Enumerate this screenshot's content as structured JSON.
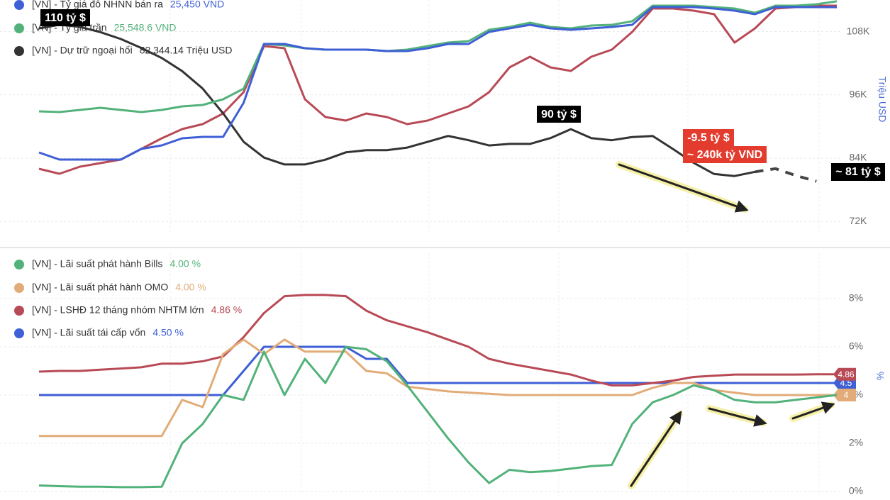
{
  "chart_data": [
    {
      "type": "line",
      "y_label": "Triệu USD",
      "categories": [
        null,
        null,
        null,
        null,
        null,
        null,
        null,
        null,
        null,
        null,
        null,
        null,
        null,
        null,
        null,
        null,
        null,
        null,
        null,
        null,
        null,
        null,
        null,
        null,
        null,
        null,
        null,
        null,
        null,
        null,
        null,
        null,
        null,
        null,
        null,
        null,
        null,
        null,
        null,
        null
      ],
      "ylim": [
        70000,
        114000
      ],
      "yticks": [
        {
          "value": 72000,
          "label": "72K"
        },
        {
          "value": 84000,
          "label": "84K"
        },
        {
          "value": 96000,
          "label": "96K"
        },
        {
          "value": 108000,
          "label": "108K"
        }
      ],
      "y2lim": [
        21700,
        25570
      ],
      "grid": true,
      "annotations": [
        "110 tỷ $",
        "90 tỷ $",
        "-9.5 tỷ $",
        "~ 240k tỷ VND",
        "~ 81 tỷ $"
      ],
      "series": [
        {
          "name": "[VN] - Tỷ giá đô NHNN bán ra",
          "legend_value": "25,450 VND",
          "color": "#3f5fd6",
          "axis": "y2",
          "values": [
            23025,
            22907,
            22907,
            22907,
            22907,
            23085,
            23144,
            23262,
            23286,
            23286,
            23854,
            24836,
            24836,
            24765,
            24742,
            24742,
            24742,
            24718,
            24718,
            24765,
            24836,
            24836,
            25037,
            25097,
            25156,
            25097,
            25073,
            25097,
            25120,
            25156,
            25452,
            25452,
            25452,
            25428,
            25392,
            25333,
            25452,
            25452,
            25452,
            25450
          ]
        },
        {
          "name": "[VN] - Tỷ giá trần",
          "legend_value": "25,548.6 VND",
          "color": "#52b27a",
          "axis": "y2",
          "values": [
            23712,
            23700,
            23736,
            23771,
            23736,
            23700,
            23736,
            23795,
            23818,
            23913,
            24091,
            24836,
            24813,
            24765,
            24742,
            24742,
            24742,
            24718,
            24742,
            24801,
            24860,
            24884,
            25073,
            25120,
            25191,
            25120,
            25097,
            25144,
            25156,
            25215,
            25475,
            25475,
            25475,
            25452,
            25428,
            25357,
            25475,
            25475,
            25499,
            25548.6
          ]
        },
        {
          "name": "[VN] - Dự trữ ngoại hối",
          "legend_value": "82,344.14 Triệu USD",
          "color": "#333333",
          "values": [
            108600,
            109300,
            108900,
            107900,
            106600,
            104900,
            103000,
            100500,
            97200,
            92500,
            87100,
            84100,
            82800,
            82800,
            83700,
            85100,
            85500,
            85500,
            86000,
            87100,
            88200,
            87400,
            86400,
            86700,
            86700,
            87800,
            89500,
            87800,
            87400,
            88000,
            88200,
            85700,
            83100,
            81000,
            80600,
            81400,
            null,
            null,
            null,
            null
          ]
        },
        {
          "color": "#444444",
          "dashed": true,
          "values": [
            null,
            null,
            null,
            null,
            null,
            null,
            null,
            null,
            null,
            null,
            null,
            null,
            null,
            null,
            null,
            null,
            null,
            null,
            null,
            null,
            null,
            null,
            null,
            null,
            null,
            null,
            null,
            null,
            null,
            null,
            null,
            null,
            null,
            null,
            null,
            81400,
            82000,
            80700,
            79600,
            null
          ]
        },
        {
          "color": "#b84a56",
          "axis": "y2",
          "values": [
            22753,
            22670,
            22789,
            22848,
            22907,
            23085,
            23262,
            23416,
            23499,
            23676,
            24031,
            24801,
            24765,
            23913,
            23617,
            23558,
            23676,
            23617,
            23499,
            23558,
            23676,
            23795,
            24031,
            24446,
            24623,
            24446,
            24387,
            24623,
            24742,
            25037,
            25428,
            25428,
            25392,
            25333,
            24860,
            25097,
            25428,
            25452,
            25475,
            25475
          ]
        }
      ]
    },
    {
      "type": "line",
      "y_label": "%",
      "categories": [
        null,
        null,
        null,
        null,
        null,
        null,
        null,
        null,
        null,
        null,
        null,
        null,
        null,
        null,
        null,
        null,
        null,
        null,
        null,
        null,
        null,
        null,
        null,
        null,
        null,
        null,
        null,
        null,
        null,
        null,
        null,
        null,
        null,
        null,
        null,
        null,
        null,
        null,
        null,
        null
      ],
      "ylim": [
        -0.2,
        9.9
      ],
      "yticks": [
        {
          "value": 0,
          "label": "0%"
        },
        {
          "value": 2,
          "label": "2%"
        },
        {
          "value": 4,
          "label": "4%"
        },
        {
          "value": 6,
          "label": "6%"
        },
        {
          "value": 8,
          "label": "8%"
        }
      ],
      "grid": true,
      "series": [
        {
          "name": "[VN] - Lãi suất phát hành Bills",
          "legend_value": "4.00 %",
          "color": "#52b27a",
          "end_label": false,
          "values": [
            0.25,
            0.22,
            0.2,
            0.2,
            0.18,
            0.18,
            0.2,
            2.0,
            2.8,
            4.0,
            3.8,
            5.8,
            4.0,
            5.5,
            4.5,
            6.0,
            5.9,
            5.4,
            4.4,
            3.3,
            2.2,
            1.2,
            0.35,
            0.9,
            0.8,
            0.85,
            0.95,
            1.05,
            1.1,
            2.8,
            3.7,
            4.0,
            4.4,
            4.2,
            3.8,
            3.7,
            3.7,
            3.8,
            3.9,
            4.0
          ]
        },
        {
          "name": "[VN] - Lãi suất phát hành OMO",
          "legend_value": "4.00 %",
          "color": "#e2ac78",
          "end_label": true,
          "values": [
            2.3,
            2.3,
            2.3,
            2.3,
            2.3,
            2.3,
            2.3,
            3.8,
            3.5,
            5.7,
            6.3,
            5.7,
            6.3,
            5.8,
            5.8,
            5.8,
            5.0,
            4.9,
            4.35,
            4.25,
            4.15,
            4.1,
            4.05,
            4.0,
            4.0,
            4.0,
            4.0,
            4.0,
            4.0,
            4.0,
            4.3,
            4.5,
            4.5,
            4.2,
            4.1,
            4.0,
            4.0,
            4.0,
            4.0,
            4
          ]
        },
        {
          "name": "[VN] - LSHĐ 12 tháng nhóm NHTM lớn",
          "legend_value": "4.86 %",
          "color": "#b84a56",
          "end_label": true,
          "values": [
            4.97,
            5.0,
            5.0,
            5.05,
            5.1,
            5.15,
            5.3,
            5.3,
            5.4,
            5.6,
            6.4,
            7.4,
            8.1,
            8.15,
            8.15,
            8.1,
            7.5,
            7.1,
            6.85,
            6.6,
            6.3,
            6.0,
            5.5,
            5.3,
            5.15,
            5.0,
            4.85,
            4.6,
            4.4,
            4.4,
            4.5,
            4.6,
            4.75,
            4.8,
            4.85,
            4.85,
            4.85,
            4.85,
            4.86,
            4.86
          ]
        },
        {
          "name": "[VN] - Lãi suất tái cấp vốn",
          "legend_value": "4.50 %",
          "color": "#3f5fd6",
          "end_label": true,
          "values": [
            4,
            4,
            4,
            4,
            4,
            4,
            4,
            4,
            4,
            4,
            5,
            6,
            6,
            6,
            6,
            6,
            5.5,
            5.5,
            4.5,
            4.5,
            4.5,
            4.5,
            4.5,
            4.5,
            4.5,
            4.5,
            4.5,
            4.5,
            4.5,
            4.5,
            4.5,
            4.5,
            4.5,
            4.5,
            4.5,
            4.5,
            4.5,
            4.5,
            4.5,
            4.5
          ]
        }
      ]
    }
  ]
}
